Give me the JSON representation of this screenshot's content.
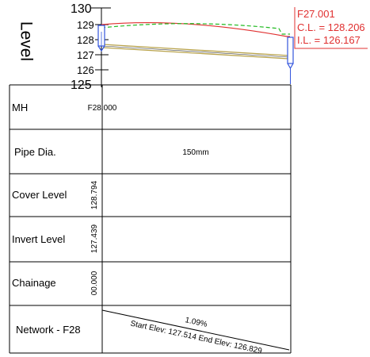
{
  "axis": {
    "label": "Level",
    "ticks": [
      "130",
      "129",
      "128",
      "127",
      "126",
      "125"
    ]
  },
  "manhole_label": {
    "id": "F27.001",
    "cover_level": "C.L. = 128.206",
    "invert_level": "I.L. = 126.167"
  },
  "table": {
    "rows": [
      {
        "label": "MH",
        "value": "F28.000"
      },
      {
        "label": "Pipe Dia.",
        "value": "150mm"
      },
      {
        "label": "Cover Level",
        "value": "128.794"
      },
      {
        "label": "Invert Level",
        "value": "127.439"
      },
      {
        "label": "Chainage",
        "value": "00.000"
      },
      {
        "label": "Network - F28",
        "value": ""
      }
    ],
    "network": {
      "gradient": "1.09%",
      "elevations": "Start Elev: 127.514 End Elev: 126.829"
    }
  },
  "colors": {
    "ground_line": "#e03030",
    "design_line": "#22bb22",
    "pipe": "#b8a24a",
    "manhole": "#3355dd",
    "label_box": "#e03030"
  }
}
